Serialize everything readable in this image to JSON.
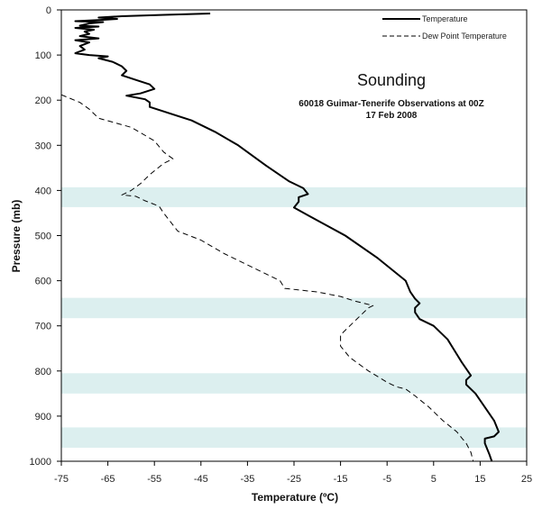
{
  "chart_data": {
    "type": "line",
    "title": "Sounding",
    "subtitle_lines": [
      "60018 Guimar-Tenerife Observations at 00Z",
      "17 Feb 2008"
    ],
    "xlabel": "Temperature (ºC)",
    "ylabel": "Pressure (mb)",
    "xlim": [
      -75,
      25
    ],
    "ylim": [
      0,
      1000
    ],
    "y_inverted": true,
    "x_ticks": [
      -75,
      -65,
      -55,
      -45,
      -35,
      -25,
      -15,
      -5,
      5,
      15,
      25
    ],
    "y_ticks": [
      0,
      100,
      200,
      300,
      400,
      500,
      600,
      700,
      800,
      900,
      1000
    ],
    "grid": false,
    "legend_position": "top-right",
    "highlight_bands": [
      [
        393,
        437
      ],
      [
        638,
        683
      ],
      [
        805,
        850
      ],
      [
        925,
        970
      ]
    ],
    "band_color": "#dcefef",
    "series": [
      {
        "name": "Temperature",
        "style": "solid",
        "color": "#000000",
        "points": [
          [
            -43,
            8
          ],
          [
            -53,
            11
          ],
          [
            -62,
            14
          ],
          [
            -67,
            17
          ],
          [
            -63,
            20
          ],
          [
            -66,
            22
          ],
          [
            -72,
            25
          ],
          [
            -66,
            27
          ],
          [
            -69,
            30
          ],
          [
            -71,
            35
          ],
          [
            -67,
            37
          ],
          [
            -72,
            40
          ],
          [
            -68,
            44
          ],
          [
            -70,
            48
          ],
          [
            -69,
            53
          ],
          [
            -71,
            58
          ],
          [
            -67,
            63
          ],
          [
            -72,
            67
          ],
          [
            -69,
            72
          ],
          [
            -71,
            80
          ],
          [
            -70,
            88
          ],
          [
            -72,
            96
          ],
          [
            -69,
            100
          ],
          [
            -65,
            103
          ],
          [
            -67,
            107
          ],
          [
            -64,
            115
          ],
          [
            -62,
            125
          ],
          [
            -61,
            135
          ],
          [
            -62,
            145
          ],
          [
            -59,
            155
          ],
          [
            -56,
            165
          ],
          [
            -55,
            175
          ],
          [
            -58,
            185
          ],
          [
            -61,
            190
          ],
          [
            -57,
            198
          ],
          [
            -56,
            205
          ],
          [
            -56,
            215
          ],
          [
            -53,
            225
          ],
          [
            -47,
            245
          ],
          [
            -42,
            270
          ],
          [
            -37,
            300
          ],
          [
            -31,
            345
          ],
          [
            -26,
            380
          ],
          [
            -23,
            395
          ],
          [
            -22,
            408
          ],
          [
            -24,
            415
          ],
          [
            -24,
            425
          ],
          [
            -25,
            438
          ],
          [
            -22,
            455
          ],
          [
            -14,
            500
          ],
          [
            -7,
            550
          ],
          [
            -1,
            600
          ],
          [
            0,
            625
          ],
          [
            1,
            640
          ],
          [
            2,
            650
          ],
          [
            1,
            660
          ],
          [
            1,
            670
          ],
          [
            2,
            685
          ],
          [
            5,
            700
          ],
          [
            8,
            730
          ],
          [
            11,
            780
          ],
          [
            13,
            810
          ],
          [
            12,
            820
          ],
          [
            12,
            830
          ],
          [
            14,
            850
          ],
          [
            16,
            880
          ],
          [
            18,
            910
          ],
          [
            19,
            935
          ],
          [
            18,
            945
          ],
          [
            16,
            950
          ],
          [
            16,
            960
          ],
          [
            17,
            985
          ],
          [
            17.5,
            1000
          ]
        ]
      },
      {
        "name": "Dew Point Temperature",
        "style": "dashed",
        "color": "#000000",
        "points": [
          [
            -75,
            188
          ],
          [
            -71,
            205
          ],
          [
            -69,
            220
          ],
          [
            -67,
            240
          ],
          [
            -60,
            260
          ],
          [
            -55,
            290
          ],
          [
            -53,
            315
          ],
          [
            -51,
            330
          ],
          [
            -53,
            340
          ],
          [
            -56,
            365
          ],
          [
            -58,
            385
          ],
          [
            -60,
            400
          ],
          [
            -62,
            410
          ],
          [
            -59,
            413
          ],
          [
            -57,
            423
          ],
          [
            -54,
            435
          ],
          [
            -53,
            450
          ],
          [
            -50,
            490
          ],
          [
            -45,
            510
          ],
          [
            -40,
            540
          ],
          [
            -32,
            580
          ],
          [
            -28,
            600
          ],
          [
            -27,
            617
          ],
          [
            -20,
            625
          ],
          [
            -15,
            635
          ],
          [
            -12,
            645
          ],
          [
            -8,
            655
          ],
          [
            -9,
            660
          ],
          [
            -11,
            680
          ],
          [
            -13,
            700
          ],
          [
            -15,
            720
          ],
          [
            -15,
            745
          ],
          [
            -13,
            770
          ],
          [
            -9,
            800
          ],
          [
            -5,
            825
          ],
          [
            -3,
            835
          ],
          [
            -1,
            840
          ],
          [
            1,
            855
          ],
          [
            4,
            880
          ],
          [
            7,
            910
          ],
          [
            10,
            935
          ],
          [
            11,
            948
          ],
          [
            12,
            960
          ],
          [
            13,
            980
          ],
          [
            13.5,
            1000
          ]
        ]
      }
    ]
  }
}
